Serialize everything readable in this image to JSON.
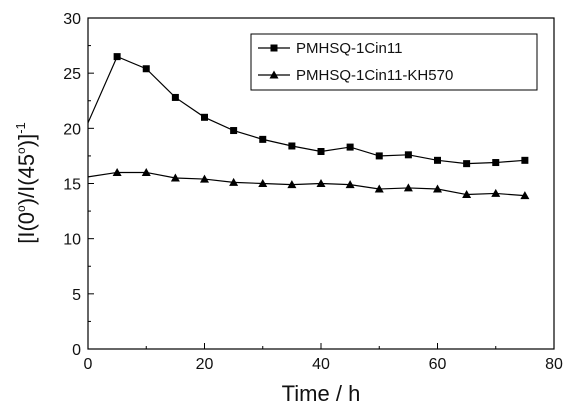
{
  "chart_data": {
    "type": "line",
    "xlabel": "Time / h",
    "ylabel_parts": [
      "[I(0",
      "o",
      ")/I(45",
      "o",
      ")]",
      "-1"
    ],
    "xlim": [
      0,
      80
    ],
    "ylim": [
      0,
      30
    ],
    "x_ticks": [
      "0",
      "20",
      "40",
      "60",
      "80"
    ],
    "y_ticks": [
      "0",
      "5",
      "10",
      "15",
      "20",
      "25",
      "30"
    ],
    "legend_position": "top-right",
    "grid": false,
    "series": [
      {
        "name": "PMHSQ-1Cin11",
        "marker": "square",
        "color": "#000000",
        "start": {
          "x": 0,
          "y": 20.5
        },
        "x": [
          5,
          10,
          15,
          20,
          25,
          30,
          35,
          40,
          45,
          50,
          55,
          60,
          65,
          70,
          75
        ],
        "values": [
          26.5,
          25.4,
          22.8,
          21.0,
          19.8,
          19.0,
          18.4,
          17.9,
          18.3,
          17.5,
          17.6,
          17.1,
          16.8,
          16.9,
          17.1
        ]
      },
      {
        "name": "PMHSQ-1Cin11-KH570",
        "marker": "triangle",
        "color": "#000000",
        "start": {
          "x": 0,
          "y": 15.6
        },
        "x": [
          5,
          10,
          15,
          20,
          25,
          30,
          35,
          40,
          45,
          50,
          55,
          60,
          65,
          70,
          75
        ],
        "values": [
          16.0,
          16.0,
          15.5,
          15.4,
          15.1,
          15.0,
          14.9,
          15.0,
          14.9,
          14.5,
          14.6,
          14.5,
          14.0,
          14.1,
          13.9
        ]
      }
    ]
  }
}
